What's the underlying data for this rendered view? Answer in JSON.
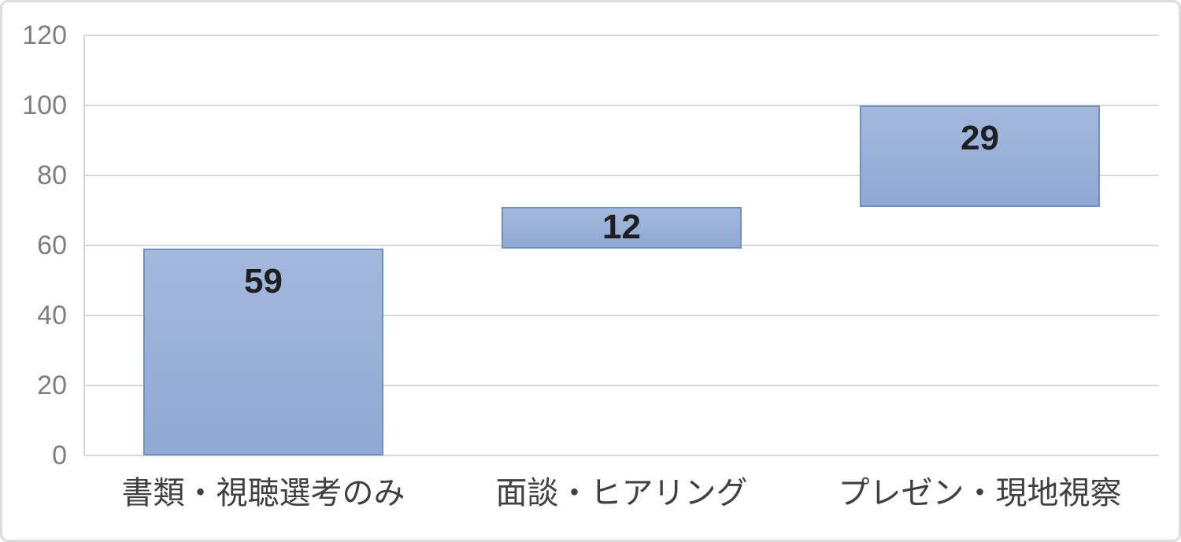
{
  "chart_data": {
    "type": "bar",
    "subtype": "waterfall-floating-bars",
    "title": "",
    "xlabel": "",
    "ylabel": "",
    "categories": [
      "書類・視聴選考のみ",
      "面談・ヒアリング",
      "プレゼン・現地視察"
    ],
    "series": [
      {
        "name": "",
        "values": [
          59,
          12,
          29
        ],
        "bases": [
          0,
          59,
          71
        ],
        "data_labels": [
          "59",
          "12",
          "29"
        ]
      }
    ],
    "ylim": [
      0,
      120
    ],
    "ytick_step": 20,
    "ytick_labels": [
      "0",
      "20",
      "40",
      "60",
      "80",
      "100",
      "120"
    ],
    "grid": true,
    "legend": "none"
  },
  "colors": {
    "bar_fill_top": "#a4b8dd",
    "bar_fill_bottom": "#8fa9d4",
    "bar_border": "#7090c2",
    "gridline": "#d9d9d9",
    "axis_line": "#d6d6d6",
    "tick_label": "#7f7f7f",
    "category_label": "#404040",
    "data_label": "#1f1f1f",
    "frame_border": "#dcdcdc",
    "background": "#ffffff"
  }
}
